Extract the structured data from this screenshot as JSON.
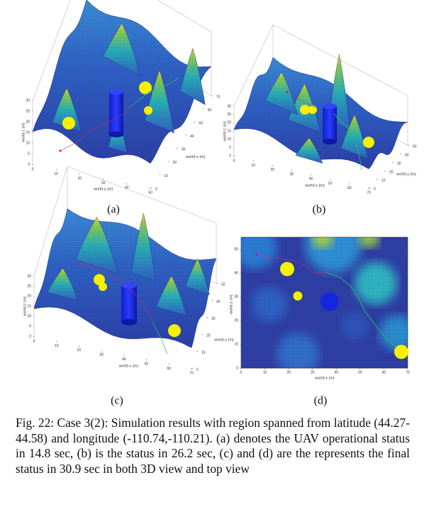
{
  "panels": [
    {
      "label": "(a)",
      "x_label": "world-x (m)",
      "y_label": "world-y (m)",
      "z_label": "world-z (m)",
      "xticks": [
        0,
        10,
        20,
        30,
        40,
        50,
        60,
        70
      ],
      "yticks": [
        0,
        10,
        20,
        30,
        40,
        50
      ],
      "zticks": [
        0,
        5,
        10,
        15,
        20,
        25,
        30
      ]
    },
    {
      "label": "(b)",
      "x_label": "world-x (m)",
      "y_label": "world-y (m)",
      "z_label": "world-z (m)",
      "xticks": [
        0,
        10,
        20,
        30,
        40,
        50,
        60,
        70
      ],
      "yticks": [
        0,
        10,
        20,
        30,
        40,
        50
      ],
      "zticks": [
        0,
        5,
        10,
        15,
        20,
        25,
        30
      ]
    },
    {
      "label": "(c)",
      "x_label": "world-x (m)",
      "y_label": "world-y (m)",
      "z_label": "world-z (m)",
      "xticks": [
        0,
        10,
        20,
        30,
        40,
        50,
        60,
        70
      ],
      "yticks": [
        0,
        10,
        20,
        30,
        40,
        50
      ],
      "zticks": [
        0,
        5,
        10,
        15,
        20,
        25,
        30
      ]
    },
    {
      "label": "(d)",
      "x_label": "world-x (m)",
      "y_label": "world-y (m)",
      "xticks": [
        0,
        10,
        20,
        30,
        40,
        50,
        60,
        70
      ],
      "yticks": [
        0,
        10,
        20,
        30,
        40,
        50
      ]
    }
  ],
  "caption": "Fig. 22: Case 3(2): Simulation results with region spanned from latitude (44.27-44.58) and longitude (-110.74,-110.21). (a) denotes the UAV operational status in 14.8 sec, (b) is the status in 26.2 sec, (c) and (d) are the represents the final status in 30.9 sec in both 3D view and top view"
}
